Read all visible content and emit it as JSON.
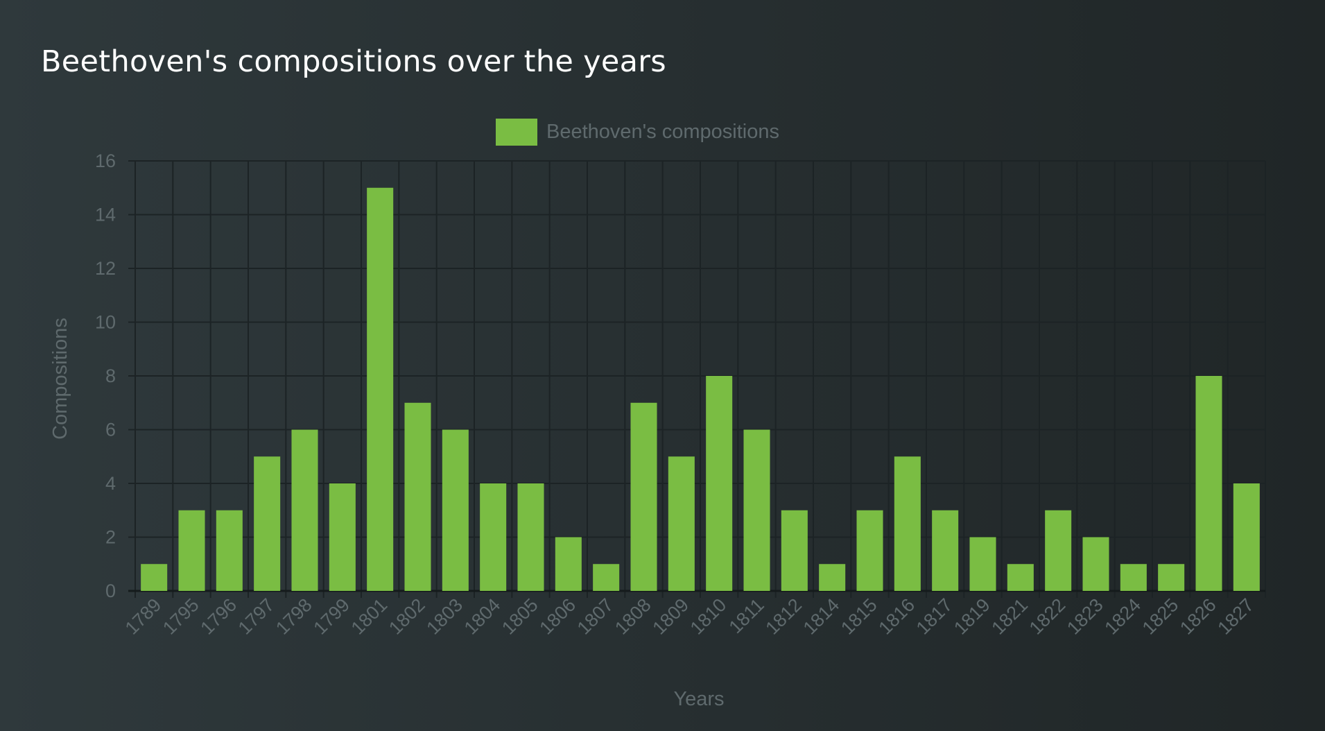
{
  "title": "Beethoven's compositions over the years",
  "colors": {
    "bar": "#7abd43",
    "grid": "#1c2325",
    "text": "#5f6a6d",
    "title": "#ffffff"
  },
  "chart_data": {
    "type": "bar",
    "title": "Beethoven's compositions over the years",
    "xlabel": "Years",
    "ylabel": "Compositions",
    "ylim": [
      0,
      16
    ],
    "yticks": [
      0,
      2,
      4,
      6,
      8,
      10,
      12,
      14,
      16
    ],
    "grid": true,
    "legend_position": "top-center",
    "categories": [
      "1789",
      "1795",
      "1796",
      "1797",
      "1798",
      "1799",
      "1801",
      "1802",
      "1803",
      "1804",
      "1805",
      "1806",
      "1807",
      "1808",
      "1809",
      "1810",
      "1811",
      "1812",
      "1814",
      "1815",
      "1816",
      "1817",
      "1819",
      "1821",
      "1822",
      "1823",
      "1824",
      "1825",
      "1826",
      "1827"
    ],
    "series": [
      {
        "name": "Beethoven's compositions",
        "color": "#7abd43",
        "values": [
          1,
          3,
          3,
          5,
          6,
          4,
          15,
          7,
          6,
          4,
          4,
          2,
          1,
          7,
          5,
          8,
          6,
          3,
          1,
          3,
          5,
          3,
          2,
          1,
          3,
          2,
          1,
          1,
          8,
          4
        ]
      }
    ]
  }
}
